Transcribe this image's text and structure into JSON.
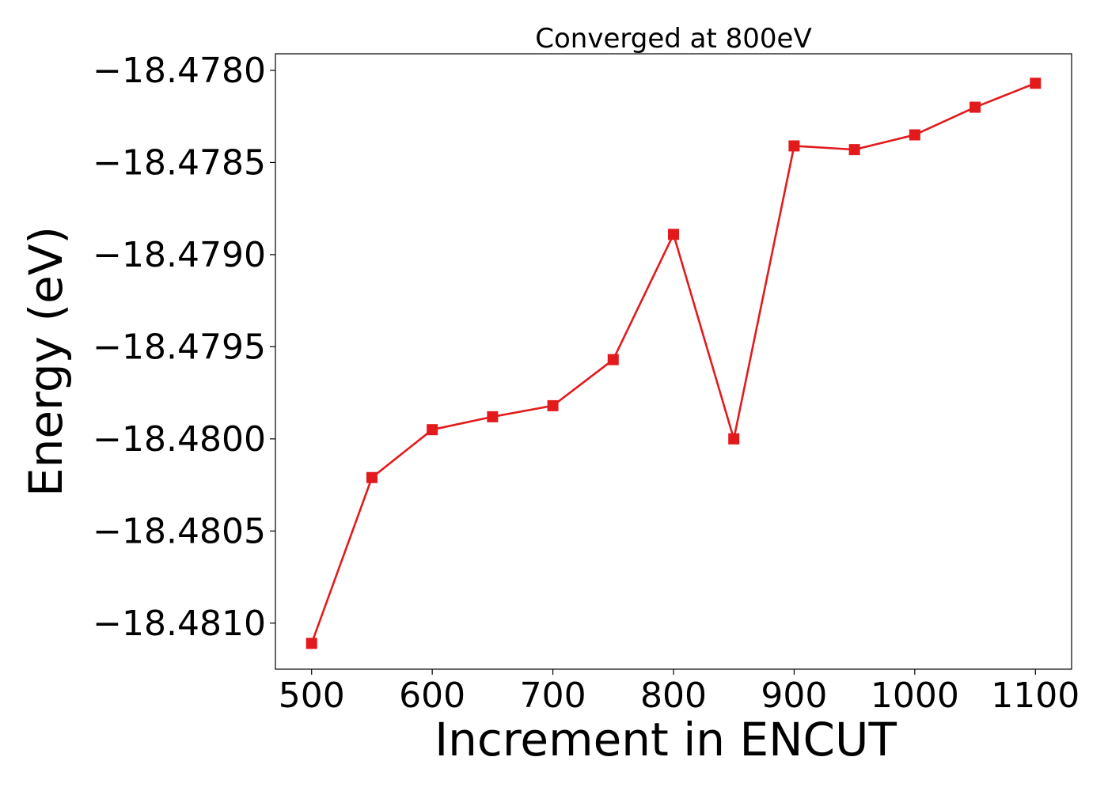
{
  "chart_data": {
    "type": "line",
    "title": "Converged at 800eV",
    "xlabel": "Increment in ENCUT",
    "ylabel": "Energy (eV)",
    "x": [
      500,
      550,
      600,
      650,
      700,
      750,
      800,
      850,
      900,
      950,
      1000,
      1050,
      1100
    ],
    "series": [
      {
        "values": [
          -18.48111,
          -18.48021,
          -18.47995,
          -18.47988,
          -18.47982,
          -18.47957,
          -18.47889,
          -18.48,
          -18.47841,
          -18.47843,
          -18.47835,
          -18.4782,
          -18.47807
        ],
        "color": "#e31a1c",
        "marker": "square"
      }
    ],
    "xlim": [
      470,
      1130
    ],
    "ylim": [
      -18.48125,
      -18.47791
    ],
    "xticks": [
      500,
      600,
      700,
      800,
      900,
      1000,
      1100
    ],
    "xtick_labels": [
      "500",
      "600",
      "700",
      "800",
      "900",
      "1000",
      "1100"
    ],
    "yticks": [
      -18.481,
      -18.4805,
      -18.48,
      -18.4795,
      -18.479,
      -18.4785,
      -18.478
    ],
    "ytick_labels": [
      "−18.4810",
      "−18.4805",
      "−18.4800",
      "−18.4795",
      "−18.4790",
      "−18.4785",
      "−18.4780"
    ],
    "grid": false,
    "legend": "none"
  }
}
